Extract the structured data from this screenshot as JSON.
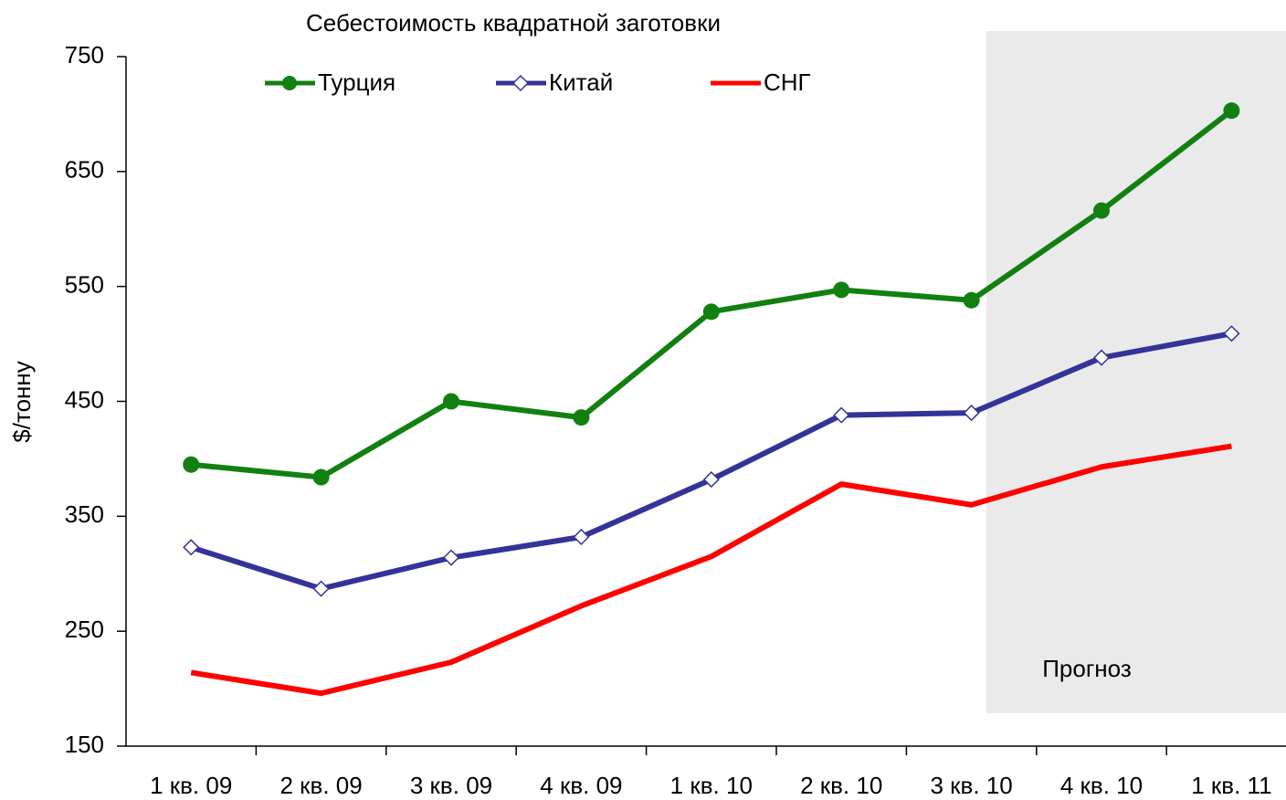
{
  "chart_data": {
    "type": "line",
    "title": "Себестоимость квадратной заготовки",
    "ylabel": "$/тонну",
    "annotation": "Прогноз",
    "categories": [
      "1 кв. 09",
      "2 кв. 09",
      "3 кв. 09",
      "4 кв. 09",
      "1 кв. 10",
      "2 кв. 10",
      "3 кв. 10",
      "4 кв. 10",
      "1 кв. 11"
    ],
    "series": [
      {
        "name": "Турция",
        "color": "#118011",
        "marker": "circle",
        "values": [
          395,
          384,
          450,
          436,
          528,
          547,
          538,
          616,
          703
        ]
      },
      {
        "name": "Китай",
        "color": "#333399",
        "marker": "diamond",
        "values": [
          323,
          287,
          314,
          332,
          382,
          438,
          440,
          488,
          509
        ]
      },
      {
        "name": "СНГ",
        "color": "#ff0000",
        "marker": "none",
        "values": [
          214,
          196,
          223,
          272,
          315,
          378,
          360,
          393,
          411
        ]
      }
    ],
    "ylim": [
      150,
      750
    ],
    "yticks": [
      150,
      250,
      350,
      450,
      550,
      650,
      750
    ]
  }
}
